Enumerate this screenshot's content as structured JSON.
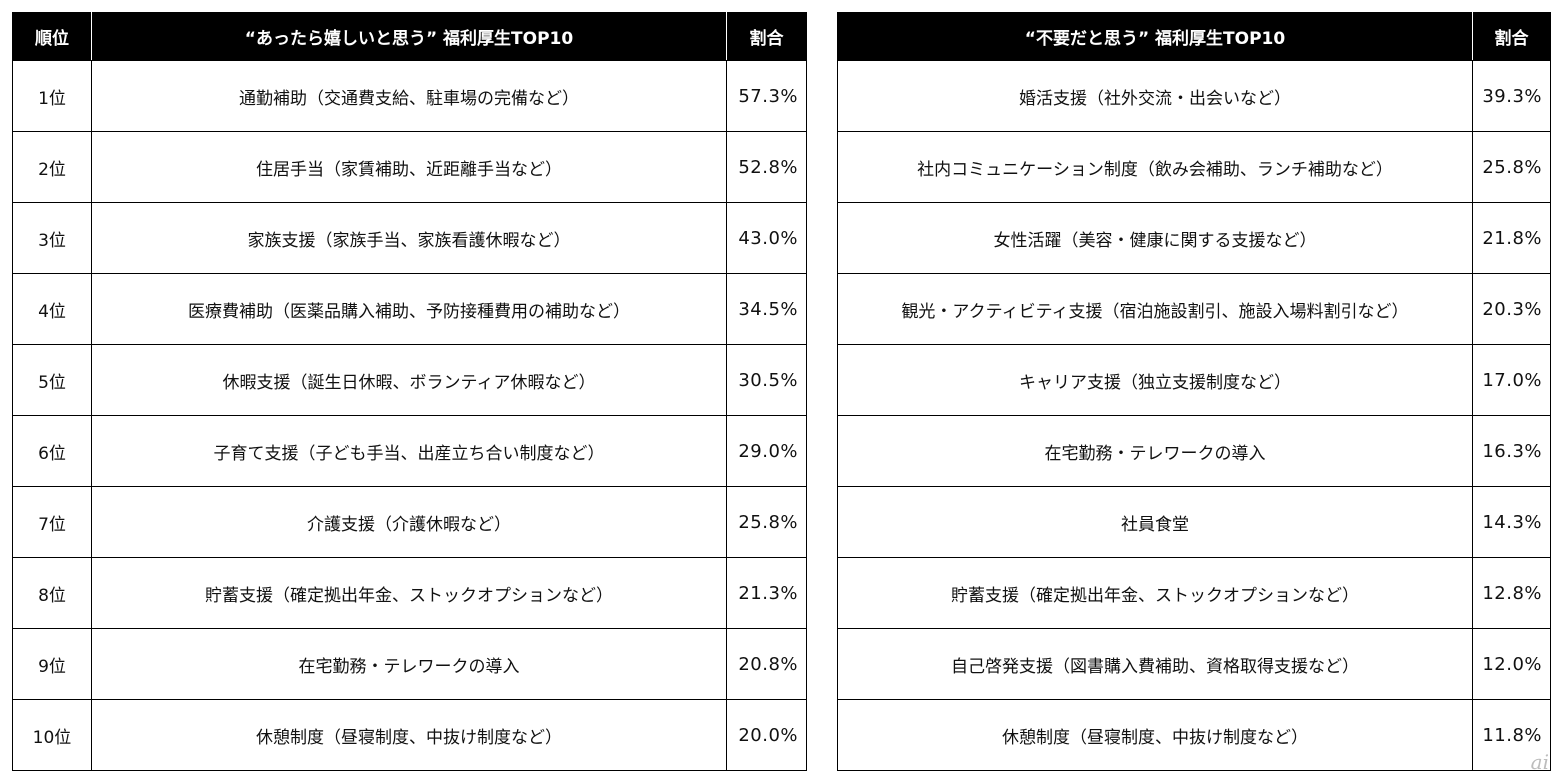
{
  "left_table": {
    "headers": {
      "rank": "順位",
      "item": "“あったら嬉しいと思う” 福利厚生TOP10",
      "ratio": "割合"
    },
    "rows": [
      {
        "rank": "1位",
        "item": "通勤補助（交通費支給、駐車場の完備など）",
        "ratio": "57.3%"
      },
      {
        "rank": "2位",
        "item": "住居手当（家賃補助、近距離手当など）",
        "ratio": "52.8%"
      },
      {
        "rank": "3位",
        "item": "家族支援（家族手当、家族看護休暇など）",
        "ratio": "43.0%"
      },
      {
        "rank": "4位",
        "item": "医療費補助（医薬品購入補助、予防接種費用の補助など）",
        "ratio": "34.5%"
      },
      {
        "rank": "5位",
        "item": "休暇支援（誕生日休暇、ボランティア休暇など）",
        "ratio": "30.5%"
      },
      {
        "rank": "6位",
        "item": "子育て支援（子ども手当、出産立ち合い制度など）",
        "ratio": "29.0%"
      },
      {
        "rank": "7位",
        "item": "介護支援（介護休暇など）",
        "ratio": "25.8%"
      },
      {
        "rank": "8位",
        "item": "貯蓄支援（確定拠出年金、ストックオプションなど）",
        "ratio": "21.3%"
      },
      {
        "rank": "9位",
        "item": "在宅勤務・テレワークの導入",
        "ratio": "20.8%"
      },
      {
        "rank": "10位",
        "item": "休憩制度（昼寝制度、中抜け制度など）",
        "ratio": "20.0%"
      }
    ]
  },
  "right_table": {
    "headers": {
      "item": "“不要だと思う” 福利厚生TOP10",
      "ratio": "割合"
    },
    "rows": [
      {
        "item": "婚活支援（社外交流・出会いなど）",
        "ratio": "39.3%"
      },
      {
        "item": "社内コミュニケーション制度（飲み会補助、ランチ補助など）",
        "ratio": "25.8%"
      },
      {
        "item": "女性活躍（美容・健康に関する支援など）",
        "ratio": "21.8%"
      },
      {
        "item": "観光・アクティビティ支援（宿泊施設割引、施設入場料割引など）",
        "ratio": "20.3%"
      },
      {
        "item": "キャリア支援（独立支援制度など）",
        "ratio": "17.0%"
      },
      {
        "item": "在宅勤務・テレワークの導入",
        "ratio": "16.3%"
      },
      {
        "item": "社員食堂",
        "ratio": "14.3%"
      },
      {
        "item": "貯蓄支援（確定拠出年金、ストックオプションなど）",
        "ratio": "12.8%"
      },
      {
        "item": "自己啓発支援（図書購入費補助、資格取得支援など）",
        "ratio": "12.0%"
      },
      {
        "item": "休憩制度（昼寝制度、中抜け制度など）",
        "ratio": "11.8%"
      }
    ]
  },
  "watermark": "ai"
}
